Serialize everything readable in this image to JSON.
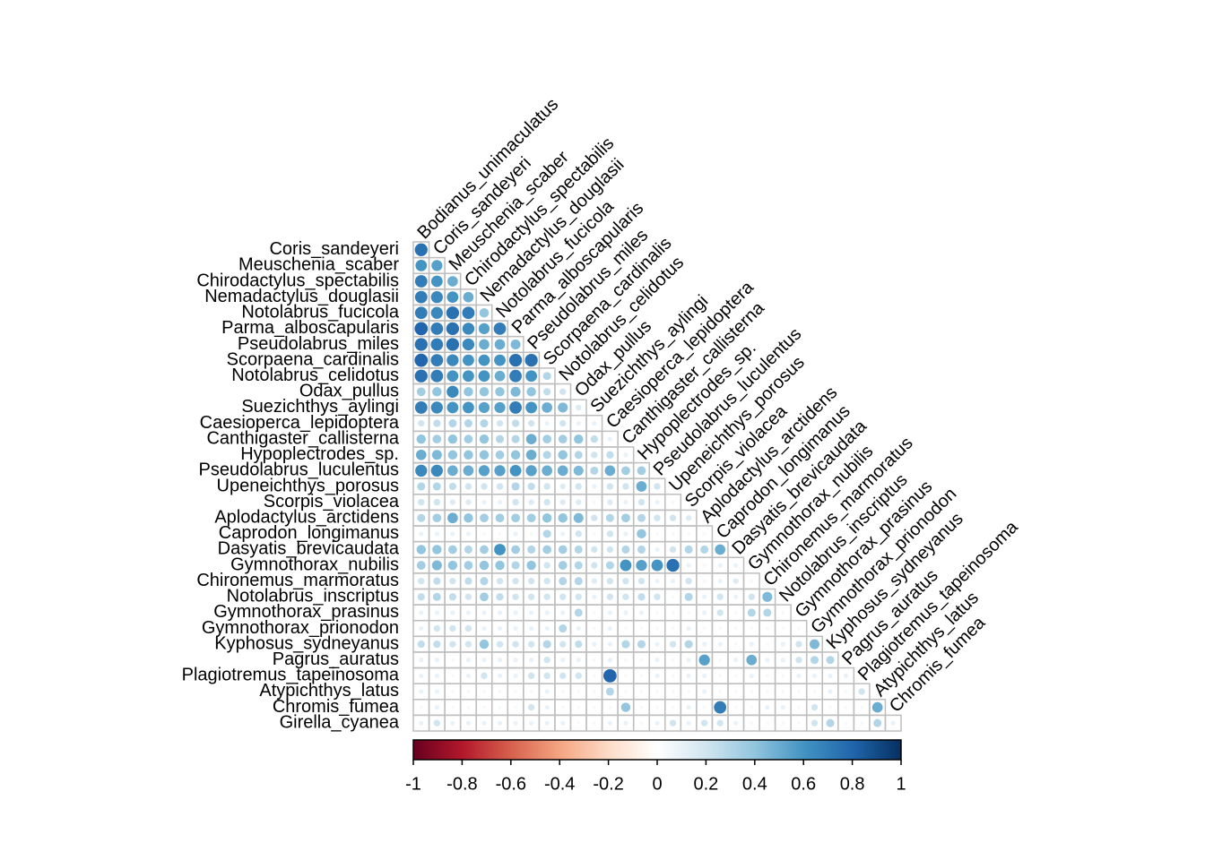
{
  "chart_data": {
    "type": "corrplot",
    "rows": [
      "Coris_sandeyeri",
      "Meuschenia_scaber",
      "Chirodactylus_spectabilis",
      "Nemadactylus_douglasii",
      "Notolabrus_fucicola",
      "Parma_alboscapularis",
      "Pseudolabrus_miles",
      "Scorpaena_cardinalis",
      "Notolabrus_celidotus",
      "Odax_pullus",
      "Suezichthys_aylingi",
      "Caesioperca_lepidoptera",
      "Canthigaster_callisterna",
      "Hypoplectrodes_sp.",
      "Pseudolabrus_luculentus",
      "Upeneichthys_porosus",
      "Scorpis_violacea",
      "Aplodactylus_arctidens",
      "Caprodon_longimanus",
      "Dasyatis_brevicaudata",
      "Gymnothorax_nubilis",
      "Chironemus_marmoratus",
      "Notolabrus_inscriptus",
      "Gymnothorax_prasinus",
      "Gymnothorax_prionodon",
      "Kyphosus_sydneyanus",
      "Pagrus_auratus",
      "Plagiotremus_tapeinosoma",
      "Atypichthys_latus",
      "Chromis_fumea",
      "Girella_cyanea"
    ],
    "columns": [
      "Bodianus_unimaculatus",
      "Coris_sandeyeri",
      "Meuschenia_scaber",
      "Chirodactylus_spectabilis",
      "Nemadactylus_douglasii",
      "Notolabrus_fucicola",
      "Parma_alboscapularis",
      "Pseudolabrus_miles",
      "Scorpaena_cardinalis",
      "Notolabrus_celidotus",
      "Odax_pullus",
      "Suezichthys_aylingi",
      "Caesioperca_lepidoptera",
      "Canthigaster_callisterna",
      "Hypoplectrodes_sp.",
      "Pseudolabrus_luculentus",
      "Upeneichthys_porosus",
      "Scorpis_violacea",
      "Aplodactylus_arctidens",
      "Caprodon_longimanus",
      "Dasyatis_brevicaudata",
      "Gymnothorax_nubilis",
      "Chironemus_marmoratus",
      "Notolabrus_inscriptus",
      "Gymnothorax_prasinus",
      "Gymnothorax_prionodon",
      "Kyphosus_sydneyanus",
      "Pagrus_auratus",
      "Plagiotremus_tapeinosoma",
      "Atypichthys_latus",
      "Chromis_fumea"
    ],
    "values": [
      [
        0.75
      ],
      [
        0.6,
        0.55
      ],
      [
        0.7,
        0.6,
        0.5
      ],
      [
        0.7,
        0.65,
        0.6,
        0.5
      ],
      [
        0.7,
        0.65,
        0.75,
        0.7,
        0.4
      ],
      [
        0.8,
        0.7,
        0.75,
        0.65,
        0.55,
        0.7
      ],
      [
        0.75,
        0.7,
        0.75,
        0.65,
        0.5,
        0.5,
        0.45
      ],
      [
        0.8,
        0.7,
        0.65,
        0.6,
        0.6,
        0.6,
        0.75,
        0.75
      ],
      [
        0.75,
        0.7,
        0.6,
        0.6,
        0.6,
        0.5,
        0.7,
        0.6,
        0.3
      ],
      [
        0.35,
        0.4,
        0.65,
        0.4,
        0.4,
        0.4,
        0.45,
        0.4,
        0.25,
        0.2
      ],
      [
        0.7,
        0.65,
        0.6,
        0.6,
        0.55,
        0.55,
        0.7,
        0.6,
        0.5,
        0.45,
        0.15
      ],
      [
        0.2,
        0.25,
        0.3,
        0.3,
        0.3,
        0.2,
        0.25,
        0.2,
        0.1,
        0.2,
        0.1,
        0.1
      ],
      [
        0.4,
        0.35,
        0.4,
        0.35,
        0.4,
        0.3,
        0.3,
        0.5,
        0.35,
        0.35,
        0.4,
        0.25,
        0.1
      ],
      [
        0.5,
        0.45,
        0.4,
        0.4,
        0.4,
        0.35,
        0.4,
        0.5,
        0.3,
        0.4,
        0.3,
        0.2,
        0.25,
        0.1
      ],
      [
        0.65,
        0.65,
        0.5,
        0.5,
        0.55,
        0.55,
        0.6,
        0.55,
        0.5,
        0.5,
        0.45,
        0.3,
        0.5,
        0.35,
        0.35
      ],
      [
        0.3,
        0.3,
        0.25,
        0.2,
        0.2,
        0.2,
        0.3,
        0.25,
        0.2,
        0.15,
        0.2,
        0.1,
        0.2,
        0.2,
        0.5,
        0.2
      ],
      [
        0.2,
        0.2,
        0.15,
        0.15,
        0.1,
        0.1,
        0.2,
        0.15,
        0.2,
        0.15,
        0.15,
        0.05,
        0.15,
        0.1,
        0.2,
        0.1,
        0.05
      ],
      [
        0.3,
        0.35,
        0.5,
        0.4,
        0.35,
        0.35,
        0.35,
        0.35,
        0.4,
        0.4,
        0.45,
        0.2,
        0.3,
        0.35,
        0.3,
        0.2,
        0.2,
        0.15
      ],
      [
        0.1,
        0.1,
        0.1,
        0.1,
        0.05,
        0.05,
        0.1,
        0.05,
        0.3,
        0.1,
        0.2,
        0.05,
        0.2,
        0.1,
        0.4,
        0.05,
        0.05,
        0.05,
        0.05
      ],
      [
        0.4,
        0.4,
        0.35,
        0.3,
        0.35,
        0.6,
        0.35,
        0.3,
        0.35,
        0.35,
        0.3,
        0.2,
        0.2,
        0.3,
        0.3,
        0.1,
        0.2,
        0.3,
        0.3,
        0.5
      ],
      [
        0.35,
        0.45,
        0.4,
        0.35,
        0.4,
        0.4,
        0.3,
        0.4,
        0.2,
        0.35,
        0.3,
        0.2,
        0.3,
        0.6,
        0.55,
        0.6,
        0.75,
        0.1,
        0.05,
        0.1,
        0.1
      ],
      [
        0.2,
        0.25,
        0.2,
        0.25,
        0.3,
        0.2,
        0.2,
        0.2,
        0.2,
        0.3,
        0.3,
        0.15,
        0.2,
        0.2,
        0.2,
        0.1,
        0.1,
        0.2,
        0.05,
        0.1,
        0.15,
        0.05
      ],
      [
        0.25,
        0.3,
        0.25,
        0.2,
        0.35,
        0.25,
        0.2,
        0.2,
        0.2,
        0.2,
        0.2,
        0.1,
        0.2,
        0.2,
        0.25,
        0.2,
        0.05,
        0.3,
        0.1,
        0.2,
        0.1,
        0.2,
        0.45
      ],
      [
        0.1,
        0.1,
        0.1,
        0.1,
        0.1,
        0.1,
        0.1,
        0.1,
        0.1,
        0.1,
        0.3,
        0.05,
        0.1,
        0.1,
        0.1,
        0.05,
        0.05,
        0.05,
        0.1,
        0.2,
        0.05,
        0.3,
        0.3,
        0.05
      ],
      [
        0.1,
        0.2,
        0.2,
        0.2,
        0.1,
        0.1,
        0.1,
        0.1,
        0.1,
        0.3,
        0.1,
        0.05,
        0.1,
        0.05,
        0.05,
        0.05,
        0.05,
        0.1,
        0.05,
        0.05,
        0.05,
        0.05,
        0.05,
        0.05,
        0.05
      ],
      [
        0.25,
        0.25,
        0.2,
        0.2,
        0.4,
        0.2,
        0.2,
        0.2,
        0.3,
        0.2,
        0.25,
        0.1,
        0.1,
        0.3,
        0.3,
        0.1,
        0.2,
        0.3,
        0.1,
        0.1,
        0.05,
        0.1,
        0.05,
        0.1,
        0.2,
        0.45
      ],
      [
        0.1,
        0.1,
        0.05,
        0.1,
        0.1,
        0.1,
        0.1,
        0.1,
        0.2,
        0.1,
        0.1,
        0.05,
        0.1,
        0.05,
        0.05,
        0.1,
        0.05,
        0.1,
        0.55,
        0.05,
        0.1,
        0.5,
        0.1,
        0.1,
        0.2,
        0.3,
        0.3
      ],
      [
        0.1,
        0.1,
        0.05,
        0.1,
        0.2,
        0.1,
        0.1,
        0.2,
        0.2,
        0.2,
        0.2,
        0.05,
        0.8,
        0.05,
        0.05,
        0.1,
        0.05,
        0.1,
        0.1,
        0.05,
        0.05,
        0.1,
        0.05,
        0.05,
        0.1,
        0.1,
        0.1,
        0.1
      ],
      [
        0.1,
        0.1,
        0.05,
        0.05,
        0.05,
        0.05,
        0.05,
        0.05,
        0.1,
        0.05,
        0.05,
        0.05,
        0.3,
        0.05,
        0.05,
        0.05,
        0.05,
        0.05,
        0.1,
        0.05,
        0.05,
        0.05,
        0.05,
        0.05,
        0.05,
        0.05,
        0.1,
        0.05,
        0.2
      ],
      [
        0.05,
        0.1,
        0.05,
        0.05,
        0.05,
        0.05,
        0.05,
        0.2,
        0.1,
        0.05,
        0.05,
        0.05,
        0.05,
        0.4,
        0.05,
        0.05,
        0.05,
        0.1,
        0.05,
        0.7,
        0.05,
        0.05,
        0.1,
        0.1,
        0.05,
        0.2,
        0.05,
        0.05,
        0.05,
        0.5
      ],
      [
        0.1,
        0.2,
        0.1,
        0.1,
        0.1,
        0.1,
        0.1,
        0.1,
        0.1,
        0.1,
        0.05,
        0.05,
        0.1,
        0.1,
        0.05,
        0.1,
        0.2,
        0.1,
        0.2,
        0.2,
        0.1,
        0.05,
        0.05,
        0.05,
        0.05,
        0.2,
        0.3,
        0.05,
        0.05,
        0.3,
        0.1
      ]
    ],
    "clim": [
      -1,
      1
    ],
    "cticks": [
      -1,
      -0.8,
      -0.6,
      -0.4,
      -0.2,
      0,
      0.2,
      0.4,
      0.6,
      0.8,
      1
    ],
    "colors": [
      "#67001F",
      "#B2182B",
      "#D6604D",
      "#F4A582",
      "#FDDBC7",
      "#FFFFFF",
      "#D1E5F0",
      "#92C5DE",
      "#4393C3",
      "#2166AC",
      "#053061"
    ],
    "grid_color": "#bebebe"
  }
}
